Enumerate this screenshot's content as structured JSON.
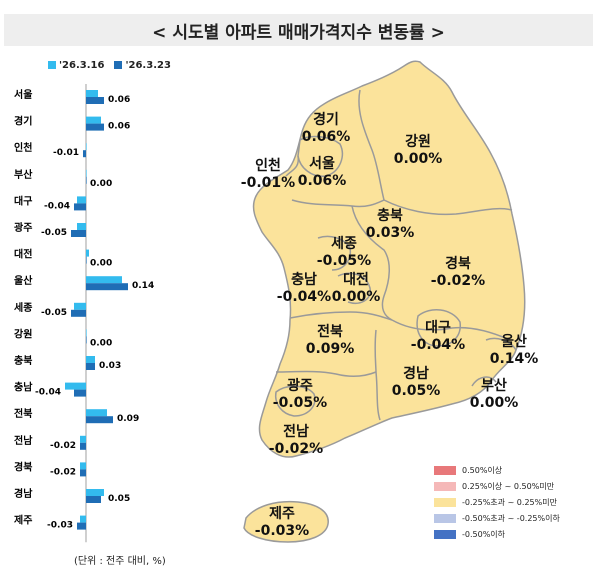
{
  "title": "< 시도별 아파트 매매가격지수 변동률 >",
  "legend": {
    "prev": {
      "label": "'26.3.16",
      "color": "#33bbee"
    },
    "curr": {
      "label": "'26.3.23",
      "color": "#1f6db5"
    }
  },
  "unit_note": "(단위 : 전주 대비, %)",
  "chart_data": {
    "type": "bar",
    "orientation": "horizontal",
    "categories": [
      "서울",
      "경기",
      "인천",
      "부산",
      "대구",
      "광주",
      "대전",
      "울산",
      "세종",
      "강원",
      "충북",
      "충남",
      "전북",
      "전남",
      "경북",
      "경남",
      "제주"
    ],
    "series": [
      {
        "name": "'26.3.16",
        "values": [
          0.04,
          0.05,
          0.0,
          0.0,
          -0.03,
          -0.03,
          0.01,
          0.12,
          -0.04,
          0.0,
          0.03,
          -0.07,
          0.07,
          -0.02,
          -0.02,
          0.06,
          -0.02
        ]
      },
      {
        "name": "'26.3.23",
        "values": [
          0.06,
          0.06,
          -0.01,
          0.0,
          -0.04,
          -0.05,
          0.0,
          0.14,
          -0.05,
          0.0,
          0.03,
          -0.04,
          0.09,
          -0.02,
          -0.02,
          0.05,
          -0.03
        ]
      }
    ],
    "value_labels": [
      "0.06",
      "0.06",
      "-0.01",
      "0.00",
      "-0.04",
      "-0.05",
      "0.00",
      "0.14",
      "-0.05",
      "0.00",
      "0.03",
      "-0.04",
      "0.09",
      "-0.02",
      "-0.02",
      "0.05",
      "-0.03"
    ]
  },
  "map": {
    "regions": [
      {
        "name": "경기",
        "value": "0.06%"
      },
      {
        "name": "강원",
        "value": "0.00%"
      },
      {
        "name": "인천",
        "value": "-0.01%"
      },
      {
        "name": "서울",
        "value": "0.06%"
      },
      {
        "name": "충북",
        "value": "0.03%"
      },
      {
        "name": "세종",
        "value": "-0.05%"
      },
      {
        "name": "충남",
        "value": "-0.04%"
      },
      {
        "name": "대전",
        "value": "0.00%"
      },
      {
        "name": "경북",
        "value": "-0.02%"
      },
      {
        "name": "전북",
        "value": "0.09%"
      },
      {
        "name": "대구",
        "value": "-0.04%"
      },
      {
        "name": "울산",
        "value": "0.14%"
      },
      {
        "name": "광주",
        "value": "-0.05%"
      },
      {
        "name": "경남",
        "value": "0.05%"
      },
      {
        "name": "부산",
        "value": "0.00%"
      },
      {
        "name": "전남",
        "value": "-0.02%"
      },
      {
        "name": "제주",
        "value": "-0.03%"
      }
    ],
    "legend": [
      {
        "label": "0.50%이상",
        "color": "#e8787a"
      },
      {
        "label": "0.25%이상 ~ 0.50%미만",
        "color": "#f5b8b8"
      },
      {
        "label": "-0.25%초과 ~ 0.25%미만",
        "color": "#fbe39b"
      },
      {
        "label": "-0.50%초과 ~ -0.25%이하",
        "color": "#b9c6e6"
      },
      {
        "label": "-0.50%이하",
        "color": "#4472c4"
      }
    ],
    "fill_color": "#fbe39b",
    "border_color": "#9a9a9a"
  }
}
